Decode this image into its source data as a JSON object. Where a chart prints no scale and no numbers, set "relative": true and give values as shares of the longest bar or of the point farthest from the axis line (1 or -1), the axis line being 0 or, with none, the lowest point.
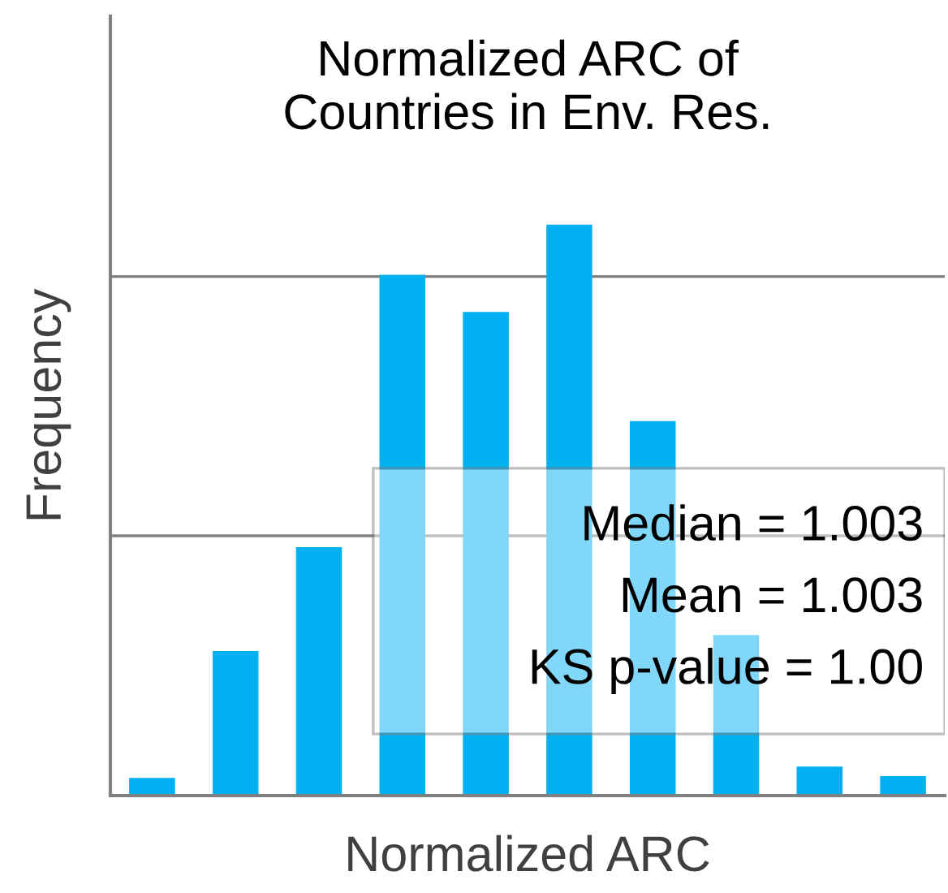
{
  "chart_data": {
    "type": "bar",
    "title": "Normalized ARC of\nCountries in Env. Res.",
    "xlabel": "Normalized ARC",
    "ylabel": "Frequency",
    "categories": [
      null,
      null,
      null,
      null,
      null,
      null,
      null,
      null,
      null,
      null
    ],
    "values": [
      0.031,
      0.253,
      0.435,
      0.912,
      0.847,
      1,
      0.656,
      0.281,
      0.051,
      0.034
    ],
    "color": "#00b0f0",
    "relative": true,
    "ref_lines": [
      {
        "axis": "y",
        "value": 0.455,
        "color": "#808080"
      },
      {
        "axis": "y",
        "value": 0.909,
        "color": "#808080"
      }
    ],
    "annotations": [
      "Median = 1.003",
      "Mean = 1.003",
      "KS p-value = 1.00"
    ]
  }
}
